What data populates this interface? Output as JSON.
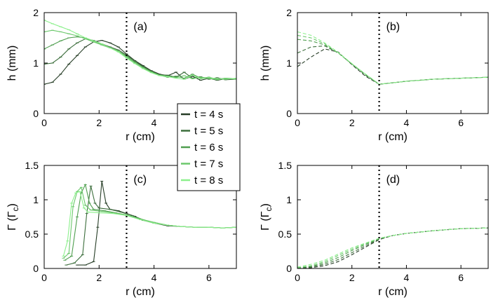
{
  "figure": {
    "legend_entries": [
      "t = 4 s",
      "t = 5 s",
      "t = 6 s",
      "t = 7 s",
      "t = 8 s"
    ],
    "series_colors": [
      "#263d26",
      "#3c6e3c",
      "#4f9e4f",
      "#6cc86c",
      "#8cf08c"
    ],
    "reference_line_r": 3
  },
  "chart_data": [
    {
      "panel": "(a)",
      "type": "line",
      "style": "solid-with-markers",
      "xlabel": "r (cm)",
      "ylabel_main": "h",
      "ylabel_unit": " (mm)",
      "xlim": [
        0,
        7
      ],
      "ylim": [
        0,
        2
      ],
      "xticks": [
        0,
        2,
        4
      ],
      "yticks": [
        0,
        1,
        2
      ],
      "tick_labels_x": [
        "0",
        "2",
        "4"
      ],
      "tick_labels_y": [
        "0",
        "1",
        "2"
      ],
      "series": [
        {
          "name": "t = 4 s",
          "x": [
            0,
            0.3,
            0.6,
            0.9,
            1.2,
            1.5,
            1.8,
            2.1,
            2.4,
            2.7,
            3.0,
            3.3,
            3.6,
            3.9,
            4.2,
            4.5,
            4.8,
            5.1,
            5.4,
            5.7,
            6.0,
            6.3,
            6.6,
            7.0
          ],
          "y": [
            0.58,
            0.62,
            0.78,
            0.98,
            1.15,
            1.32,
            1.42,
            1.45,
            1.4,
            1.32,
            1.18,
            1.05,
            0.95,
            0.85,
            0.78,
            0.75,
            0.82,
            0.68,
            0.74,
            0.66,
            0.7,
            0.66,
            0.69,
            0.68
          ]
        },
        {
          "name": "t = 5 s",
          "x": [
            0,
            0.3,
            0.6,
            0.9,
            1.2,
            1.5,
            1.8,
            2.1,
            2.4,
            2.7,
            3.0,
            3.3,
            3.6,
            3.9,
            4.2,
            4.5,
            4.8,
            5.1,
            5.4,
            5.7,
            6.0,
            6.3,
            6.6,
            7.0
          ],
          "y": [
            0.98,
            1.0,
            1.12,
            1.28,
            1.4,
            1.48,
            1.45,
            1.38,
            1.32,
            1.26,
            1.16,
            1.04,
            0.93,
            0.84,
            0.77,
            0.76,
            0.72,
            0.82,
            0.7,
            0.73,
            0.68,
            0.71,
            0.67,
            0.68
          ]
        },
        {
          "name": "t = 6 s",
          "x": [
            0,
            0.3,
            0.6,
            0.9,
            1.2,
            1.5,
            1.8,
            2.1,
            2.4,
            2.7,
            3.0,
            3.3,
            3.6,
            3.9,
            4.2,
            4.5,
            4.8,
            5.1,
            5.4,
            5.7,
            6.0,
            6.3,
            6.6,
            7.0
          ],
          "y": [
            1.28,
            1.36,
            1.44,
            1.5,
            1.52,
            1.5,
            1.44,
            1.36,
            1.3,
            1.24,
            1.14,
            1.02,
            0.92,
            0.83,
            0.76,
            0.72,
            0.74,
            0.7,
            0.78,
            0.7,
            0.72,
            0.68,
            0.7,
            0.69
          ]
        },
        {
          "name": "t = 7 s",
          "x": [
            0,
            0.3,
            0.6,
            0.9,
            1.2,
            1.5,
            1.8,
            2.1,
            2.4,
            2.7,
            3.0,
            3.3,
            3.6,
            3.9,
            4.2,
            4.5,
            4.8,
            5.1,
            5.4,
            5.7,
            6.0,
            6.3,
            6.6,
            7.0
          ],
          "y": [
            1.62,
            1.65,
            1.62,
            1.58,
            1.54,
            1.48,
            1.42,
            1.36,
            1.3,
            1.24,
            1.12,
            1.0,
            0.9,
            0.82,
            0.76,
            0.74,
            0.71,
            0.75,
            0.69,
            0.72,
            0.7,
            0.67,
            0.7,
            0.68
          ]
        },
        {
          "name": "t = 8 s",
          "x": [
            0,
            0.3,
            0.6,
            0.9,
            1.2,
            1.5,
            1.8,
            2.1,
            2.4,
            2.7,
            3.0,
            3.3,
            3.6,
            3.9,
            4.2,
            4.5,
            4.8,
            5.1,
            5.4,
            5.7,
            6.0,
            6.3,
            6.6,
            7.0
          ],
          "y": [
            1.85,
            1.78,
            1.72,
            1.66,
            1.58,
            1.5,
            1.44,
            1.38,
            1.3,
            1.22,
            1.1,
            0.99,
            0.89,
            0.81,
            0.75,
            0.73,
            0.7,
            0.68,
            0.76,
            0.69,
            0.71,
            0.69,
            0.68,
            0.7
          ]
        }
      ]
    },
    {
      "panel": "(b)",
      "type": "line",
      "style": "dashed",
      "xlabel": "r (cm)",
      "ylabel_main": "h",
      "ylabel_unit": " (mm)",
      "xlim": [
        0,
        7
      ],
      "ylim": [
        0,
        2
      ],
      "xticks": [
        0,
        2,
        4,
        6
      ],
      "yticks": [
        0,
        1,
        2
      ],
      "tick_labels_x": [
        "0",
        "2",
        "4",
        "6"
      ],
      "tick_labels_y": [
        "0",
        "1",
        "2"
      ],
      "series": [
        {
          "name": "t = 4 s",
          "x": [
            0,
            0.5,
            1.0,
            1.5,
            2.0,
            2.5,
            3.0,
            3.5,
            4.0,
            5.0,
            6.0,
            7.0
          ],
          "y": [
            0.93,
            1.12,
            1.28,
            1.22,
            0.97,
            0.74,
            0.58,
            0.61,
            0.64,
            0.68,
            0.7,
            0.72
          ]
        },
        {
          "name": "t = 5 s",
          "x": [
            0,
            0.5,
            1.0,
            1.5,
            2.0,
            2.5,
            3.0,
            3.5,
            4.0,
            5.0,
            6.0,
            7.0
          ],
          "y": [
            1.2,
            1.32,
            1.34,
            1.2,
            0.98,
            0.76,
            0.58,
            0.61,
            0.64,
            0.68,
            0.7,
            0.72
          ]
        },
        {
          "name": "t = 6 s",
          "x": [
            0,
            0.5,
            1.0,
            1.5,
            2.0,
            2.5,
            3.0,
            3.5,
            4.0,
            5.0,
            6.0,
            7.0
          ],
          "y": [
            1.47,
            1.44,
            1.36,
            1.2,
            0.98,
            0.77,
            0.58,
            0.61,
            0.64,
            0.68,
            0.7,
            0.72
          ]
        },
        {
          "name": "t = 7 s",
          "x": [
            0,
            0.5,
            1.0,
            1.5,
            2.0,
            2.5,
            3.0,
            3.5,
            4.0,
            5.0,
            6.0,
            7.0
          ],
          "y": [
            1.55,
            1.5,
            1.38,
            1.2,
            0.98,
            0.78,
            0.58,
            0.61,
            0.64,
            0.68,
            0.7,
            0.72
          ]
        },
        {
          "name": "t = 8 s",
          "x": [
            0,
            0.5,
            1.0,
            1.5,
            2.0,
            2.5,
            3.0,
            3.5,
            4.0,
            5.0,
            6.0,
            7.0
          ],
          "y": [
            1.62,
            1.55,
            1.4,
            1.21,
            0.99,
            0.78,
            0.58,
            0.61,
            0.64,
            0.68,
            0.7,
            0.72
          ]
        }
      ]
    },
    {
      "panel": "(c)",
      "type": "line",
      "style": "solid-with-markers",
      "xlabel": "r (cm)",
      "ylabel_main": "Γ (Γ",
      "ylabel_sub": "c",
      "ylabel_close": ")",
      "xlim": [
        0,
        7
      ],
      "ylim": [
        0,
        1.5
      ],
      "xticks": [
        0,
        2,
        4,
        6
      ],
      "yticks": [
        0,
        0.5,
        1,
        1.5
      ],
      "tick_labels_x": [
        "0",
        "2",
        "4",
        "6"
      ],
      "tick_labels_y": [
        "0",
        "0.5",
        "1",
        "1.5"
      ],
      "series": [
        {
          "name": "t = 4 s",
          "x": [
            1.2,
            1.5,
            1.8,
            1.95,
            2.1,
            2.25,
            2.4,
            2.7,
            3.0,
            3.3,
            3.6,
            4.0,
            4.5,
            5.0,
            5.5,
            6.0,
            6.5,
            7.0
          ],
          "y": [
            0.05,
            0.05,
            0.1,
            0.6,
            1.27,
            0.95,
            0.86,
            0.84,
            0.8,
            0.76,
            0.7,
            0.66,
            0.62,
            0.61,
            0.6,
            0.6,
            0.59,
            0.6
          ]
        },
        {
          "name": "t = 5 s",
          "x": [
            0.8,
            1.1,
            1.4,
            1.55,
            1.7,
            1.85,
            2.0,
            2.4,
            2.8,
            3.2,
            3.6,
            4.0,
            4.5,
            5.0,
            5.5,
            6.0,
            6.5,
            7.0
          ],
          "y": [
            0.05,
            0.08,
            0.2,
            0.8,
            1.2,
            0.95,
            0.88,
            0.86,
            0.82,
            0.77,
            0.71,
            0.66,
            0.63,
            0.61,
            0.6,
            0.6,
            0.59,
            0.6
          ]
        },
        {
          "name": "t = 6 s",
          "x": [
            0.75,
            1.0,
            1.2,
            1.35,
            1.5,
            1.65,
            1.8,
            2.2,
            2.6,
            3.0,
            3.5,
            4.0,
            4.5,
            5.0,
            5.5,
            6.0,
            6.5,
            7.0
          ],
          "y": [
            0.12,
            0.18,
            0.75,
            1.1,
            1.22,
            0.95,
            0.86,
            0.84,
            0.81,
            0.78,
            0.72,
            0.67,
            0.63,
            0.61,
            0.6,
            0.6,
            0.59,
            0.6
          ]
        },
        {
          "name": "t = 7 s",
          "x": [
            0.7,
            0.9,
            1.05,
            1.2,
            1.35,
            1.5,
            1.7,
            2.1,
            2.5,
            3.0,
            3.5,
            4.0,
            4.5,
            5.0,
            5.5,
            6.0,
            6.5,
            7.0
          ],
          "y": [
            0.15,
            0.22,
            0.9,
            1.12,
            1.18,
            0.92,
            0.85,
            0.83,
            0.81,
            0.78,
            0.72,
            0.67,
            0.63,
            0.61,
            0.6,
            0.6,
            0.59,
            0.6
          ]
        },
        {
          "name": "t = 8 s",
          "x": [
            0.7,
            0.85,
            1.0,
            1.15,
            1.3,
            1.45,
            1.6,
            2.0,
            2.5,
            3.0,
            3.5,
            4.0,
            4.5,
            5.0,
            5.5,
            6.0,
            6.5,
            7.0
          ],
          "y": [
            0.18,
            0.4,
            0.95,
            1.1,
            1.12,
            0.88,
            0.82,
            0.81,
            0.8,
            0.77,
            0.71,
            0.66,
            0.63,
            0.61,
            0.6,
            0.6,
            0.59,
            0.6
          ]
        }
      ]
    },
    {
      "panel": "(d)",
      "type": "line",
      "style": "dashed",
      "xlabel": "r (cm)",
      "ylabel_main": "Γ (Γ",
      "ylabel_sub": "c",
      "ylabel_close": ")",
      "xlim": [
        0,
        7
      ],
      "ylim": [
        0,
        1.5
      ],
      "xticks": [
        0,
        2,
        4,
        6
      ],
      "yticks": [
        0,
        0.5,
        1,
        1.5
      ],
      "tick_labels_x": [
        "0",
        "2",
        "4",
        "6"
      ],
      "tick_labels_y": [
        "0",
        "0.5",
        "1",
        "1.5"
      ],
      "series": [
        {
          "name": "t = 4 s",
          "x": [
            0,
            0.5,
            1.0,
            1.5,
            2.0,
            2.5,
            3.0,
            3.5,
            4.0,
            5.0,
            6.0,
            7.0
          ],
          "y": [
            0.0,
            0.01,
            0.04,
            0.1,
            0.2,
            0.31,
            0.42,
            0.48,
            0.51,
            0.55,
            0.58,
            0.59
          ]
        },
        {
          "name": "t = 5 s",
          "x": [
            0,
            0.5,
            1.0,
            1.5,
            2.0,
            2.5,
            3.0,
            3.5,
            4.0,
            5.0,
            6.0,
            7.0
          ],
          "y": [
            0.0,
            0.02,
            0.06,
            0.13,
            0.23,
            0.33,
            0.43,
            0.48,
            0.51,
            0.55,
            0.58,
            0.59
          ]
        },
        {
          "name": "t = 6 s",
          "x": [
            0,
            0.5,
            1.0,
            1.5,
            2.0,
            2.5,
            3.0,
            3.5,
            4.0,
            5.0,
            6.0,
            7.0
          ],
          "y": [
            0.01,
            0.03,
            0.08,
            0.16,
            0.26,
            0.35,
            0.43,
            0.48,
            0.51,
            0.55,
            0.58,
            0.59
          ]
        },
        {
          "name": "t = 7 s",
          "x": [
            0,
            0.5,
            1.0,
            1.5,
            2.0,
            2.5,
            3.0,
            3.5,
            4.0,
            5.0,
            6.0,
            7.0
          ],
          "y": [
            0.01,
            0.04,
            0.1,
            0.19,
            0.28,
            0.36,
            0.44,
            0.48,
            0.51,
            0.55,
            0.58,
            0.59
          ]
        },
        {
          "name": "t = 8 s",
          "x": [
            0,
            0.5,
            1.0,
            1.5,
            2.0,
            2.5,
            3.0,
            3.5,
            4.0,
            5.0,
            6.0,
            7.0
          ],
          "y": [
            0.02,
            0.06,
            0.12,
            0.21,
            0.3,
            0.37,
            0.44,
            0.48,
            0.51,
            0.55,
            0.58,
            0.59
          ]
        }
      ]
    }
  ]
}
